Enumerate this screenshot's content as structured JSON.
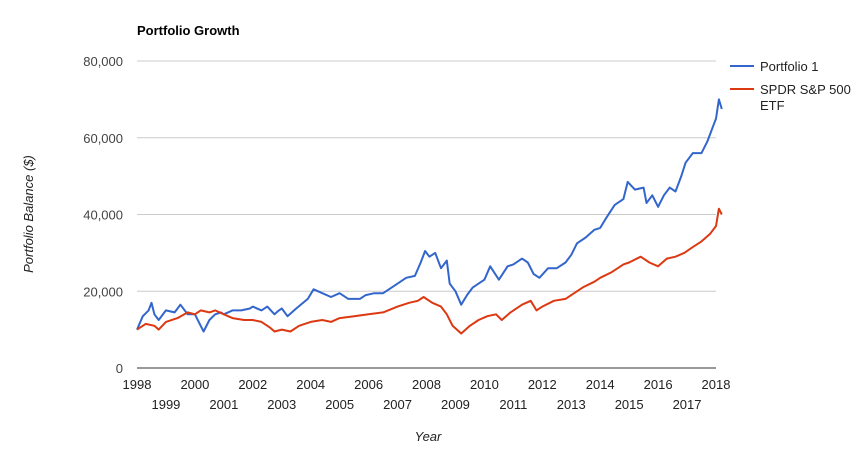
{
  "chart_data": {
    "type": "line",
    "title": "Portfolio Growth",
    "xlabel": "Year",
    "ylabel": "Portfolio Balance ($)",
    "xlim": [
      1998,
      2018
    ],
    "ylim": [
      0,
      80000
    ],
    "y_ticks": [
      0,
      20000,
      40000,
      60000,
      80000
    ],
    "y_tick_labels": [
      "0",
      "20,000",
      "40,000",
      "60,000",
      "80,000"
    ],
    "x_ticks_top": [
      {
        "x": 1998,
        "label": "1998"
      },
      {
        "x": 2000,
        "label": "2000"
      },
      {
        "x": 2002,
        "label": "2002"
      },
      {
        "x": 2004,
        "label": "2004"
      },
      {
        "x": 2006,
        "label": "2006"
      },
      {
        "x": 2008,
        "label": "2008"
      },
      {
        "x": 2010,
        "label": "2010"
      },
      {
        "x": 2012,
        "label": "2012"
      },
      {
        "x": 2014,
        "label": "2014"
      },
      {
        "x": 2016,
        "label": "2016"
      },
      {
        "x": 2018,
        "label": "2018"
      }
    ],
    "x_ticks_bottom": [
      {
        "x": 1999,
        "label": "1999"
      },
      {
        "x": 2001,
        "label": "2001"
      },
      {
        "x": 2003,
        "label": "2003"
      },
      {
        "x": 2005,
        "label": "2005"
      },
      {
        "x": 2007,
        "label": "2007"
      },
      {
        "x": 2009,
        "label": "2009"
      },
      {
        "x": 2011,
        "label": "2011"
      },
      {
        "x": 2013,
        "label": "2013"
      },
      {
        "x": 2015,
        "label": "2015"
      },
      {
        "x": 2017,
        "label": "2017"
      }
    ],
    "grid": true,
    "legend": "right",
    "series": [
      {
        "name": "Portfolio 1",
        "color": "#3366cc",
        "points": [
          [
            1998.0,
            10000
          ],
          [
            1998.2,
            13500
          ],
          [
            1998.4,
            15000
          ],
          [
            1998.5,
            17000
          ],
          [
            1998.6,
            14000
          ],
          [
            1998.75,
            12500
          ],
          [
            1999.0,
            15000
          ],
          [
            1999.3,
            14500
          ],
          [
            1999.5,
            16500
          ],
          [
            1999.75,
            14000
          ],
          [
            2000.0,
            14000
          ],
          [
            2000.2,
            11000
          ],
          [
            2000.3,
            9500
          ],
          [
            2000.5,
            12500
          ],
          [
            2000.7,
            14000
          ],
          [
            2000.9,
            14500
          ],
          [
            2001.0,
            14000
          ],
          [
            2001.3,
            15000
          ],
          [
            2001.6,
            15000
          ],
          [
            2001.9,
            15500
          ],
          [
            2002.0,
            16000
          ],
          [
            2002.3,
            15000
          ],
          [
            2002.5,
            16000
          ],
          [
            2002.75,
            14000
          ],
          [
            2002.9,
            15000
          ],
          [
            2003.0,
            15500
          ],
          [
            2003.2,
            13500
          ],
          [
            2003.5,
            15500
          ],
          [
            2003.9,
            18000
          ],
          [
            2004.1,
            20500
          ],
          [
            2004.4,
            19500
          ],
          [
            2004.7,
            18500
          ],
          [
            2005.0,
            19500
          ],
          [
            2005.3,
            18000
          ],
          [
            2005.7,
            18000
          ],
          [
            2005.9,
            19000
          ],
          [
            2006.2,
            19500
          ],
          [
            2006.5,
            19500
          ],
          [
            2006.8,
            21000
          ],
          [
            2007.0,
            22000
          ],
          [
            2007.3,
            23500
          ],
          [
            2007.6,
            24000
          ],
          [
            2007.8,
            27500
          ],
          [
            2007.95,
            30500
          ],
          [
            2008.1,
            29000
          ],
          [
            2008.3,
            30000
          ],
          [
            2008.5,
            26000
          ],
          [
            2008.7,
            28000
          ],
          [
            2008.8,
            22000
          ],
          [
            2009.0,
            20000
          ],
          [
            2009.2,
            16500
          ],
          [
            2009.4,
            19000
          ],
          [
            2009.6,
            21000
          ],
          [
            2009.8,
            22000
          ],
          [
            2010.0,
            23000
          ],
          [
            2010.2,
            26500
          ],
          [
            2010.5,
            23000
          ],
          [
            2010.8,
            26500
          ],
          [
            2011.0,
            27000
          ],
          [
            2011.3,
            28500
          ],
          [
            2011.5,
            27500
          ],
          [
            2011.7,
            24500
          ],
          [
            2011.9,
            23500
          ],
          [
            2012.2,
            26000
          ],
          [
            2012.5,
            26000
          ],
          [
            2012.8,
            27500
          ],
          [
            2013.0,
            29500
          ],
          [
            2013.2,
            32500
          ],
          [
            2013.5,
            34000
          ],
          [
            2013.8,
            36000
          ],
          [
            2014.0,
            36500
          ],
          [
            2014.2,
            39000
          ],
          [
            2014.5,
            42500
          ],
          [
            2014.8,
            44000
          ],
          [
            2014.95,
            48500
          ],
          [
            2015.2,
            46500
          ],
          [
            2015.5,
            47000
          ],
          [
            2015.6,
            43000
          ],
          [
            2015.8,
            45000
          ],
          [
            2016.0,
            42000
          ],
          [
            2016.2,
            45000
          ],
          [
            2016.4,
            47000
          ],
          [
            2016.6,
            46000
          ],
          [
            2016.8,
            50000
          ],
          [
            2016.95,
            53500
          ],
          [
            2017.2,
            56000
          ],
          [
            2017.5,
            56000
          ],
          [
            2017.7,
            59000
          ],
          [
            2017.9,
            63000
          ],
          [
            2018.0,
            65000
          ],
          [
            2018.1,
            70000
          ],
          [
            2018.2,
            67500
          ]
        ]
      },
      {
        "name": "SPDR S&P 500 ETF",
        "color": "#dc3912",
        "points": [
          [
            1998.0,
            10000
          ],
          [
            1998.3,
            11500
          ],
          [
            1998.6,
            11000
          ],
          [
            1998.75,
            10000
          ],
          [
            1999.0,
            12000
          ],
          [
            1999.4,
            13000
          ],
          [
            1999.75,
            14500
          ],
          [
            2000.0,
            14000
          ],
          [
            2000.2,
            15000
          ],
          [
            2000.5,
            14500
          ],
          [
            2000.7,
            15000
          ],
          [
            2001.0,
            14000
          ],
          [
            2001.3,
            13000
          ],
          [
            2001.7,
            12500
          ],
          [
            2002.0,
            12500
          ],
          [
            2002.3,
            12000
          ],
          [
            2002.6,
            10500
          ],
          [
            2002.75,
            9500
          ],
          [
            2003.0,
            10000
          ],
          [
            2003.3,
            9500
          ],
          [
            2003.6,
            11000
          ],
          [
            2004.0,
            12000
          ],
          [
            2004.4,
            12500
          ],
          [
            2004.7,
            12000
          ],
          [
            2005.0,
            13000
          ],
          [
            2005.5,
            13500
          ],
          [
            2006.0,
            14000
          ],
          [
            2006.5,
            14500
          ],
          [
            2007.0,
            16000
          ],
          [
            2007.4,
            17000
          ],
          [
            2007.7,
            17500
          ],
          [
            2007.9,
            18500
          ],
          [
            2008.2,
            17000
          ],
          [
            2008.5,
            16000
          ],
          [
            2008.7,
            14000
          ],
          [
            2008.9,
            11000
          ],
          [
            2009.2,
            9000
          ],
          [
            2009.5,
            11000
          ],
          [
            2009.8,
            12500
          ],
          [
            2010.1,
            13500
          ],
          [
            2010.4,
            14000
          ],
          [
            2010.6,
            12500
          ],
          [
            2010.9,
            14500
          ],
          [
            2011.3,
            16500
          ],
          [
            2011.6,
            17500
          ],
          [
            2011.8,
            15000
          ],
          [
            2012.0,
            16000
          ],
          [
            2012.4,
            17500
          ],
          [
            2012.8,
            18000
          ],
          [
            2013.0,
            19000
          ],
          [
            2013.4,
            21000
          ],
          [
            2013.8,
            22500
          ],
          [
            2014.0,
            23500
          ],
          [
            2014.4,
            25000
          ],
          [
            2014.8,
            27000
          ],
          [
            2015.0,
            27500
          ],
          [
            2015.4,
            29000
          ],
          [
            2015.7,
            27500
          ],
          [
            2016.0,
            26500
          ],
          [
            2016.3,
            28500
          ],
          [
            2016.6,
            29000
          ],
          [
            2016.9,
            30000
          ],
          [
            2017.2,
            31500
          ],
          [
            2017.5,
            33000
          ],
          [
            2017.8,
            35000
          ],
          [
            2018.0,
            37000
          ],
          [
            2018.1,
            41500
          ],
          [
            2018.2,
            40000
          ]
        ]
      }
    ]
  }
}
